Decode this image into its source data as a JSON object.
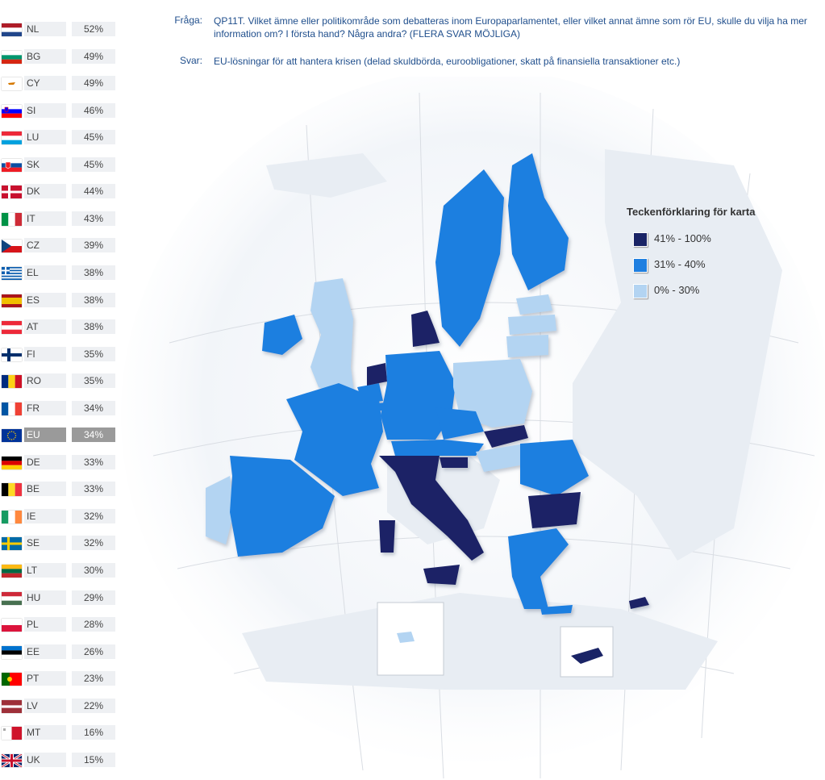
{
  "question": {
    "label": "Fråga:",
    "text": "QP11T. Vilket ämne eller politikområde som debatteras inom Europaparlamentet, eller vilket annat ämne som rör EU, skulle du vilja ha mer information om? I första hand? Några andra? (FLERA SVAR MÖJLIGA)"
  },
  "answer": {
    "label": "Svar:",
    "text": "EU-lösningar för att hantera krisen (delad skuldbörda, euroobligationer, skatt på finansiella transaktioner etc.)"
  },
  "legend": {
    "title": "Teckenförklaring för karta",
    "items": [
      {
        "label": "41% - 100%",
        "color": "#1a2466"
      },
      {
        "label": "31% - 40%",
        "color": "#1f7fe0"
      },
      {
        "label": "0% - 30%",
        "color": "#b3d4f2"
      }
    ]
  },
  "ranking": [
    {
      "code": "NL",
      "value": "52%",
      "flag": "nl"
    },
    {
      "code": "BG",
      "value": "49%",
      "flag": "bg"
    },
    {
      "code": "CY",
      "value": "49%",
      "flag": "cy"
    },
    {
      "code": "SI",
      "value": "46%",
      "flag": "si"
    },
    {
      "code": "LU",
      "value": "45%",
      "flag": "lu"
    },
    {
      "code": "SK",
      "value": "45%",
      "flag": "sk"
    },
    {
      "code": "DK",
      "value": "44%",
      "flag": "dk"
    },
    {
      "code": "IT",
      "value": "43%",
      "flag": "it"
    },
    {
      "code": "CZ",
      "value": "39%",
      "flag": "cz"
    },
    {
      "code": "EL",
      "value": "38%",
      "flag": "el"
    },
    {
      "code": "ES",
      "value": "38%",
      "flag": "es"
    },
    {
      "code": "AT",
      "value": "38%",
      "flag": "at"
    },
    {
      "code": "FI",
      "value": "35%",
      "flag": "fi"
    },
    {
      "code": "RO",
      "value": "35%",
      "flag": "ro"
    },
    {
      "code": "FR",
      "value": "34%",
      "flag": "fr"
    },
    {
      "code": "EU",
      "value": "34%",
      "flag": "eu"
    },
    {
      "code": "DE",
      "value": "33%",
      "flag": "de"
    },
    {
      "code": "BE",
      "value": "33%",
      "flag": "be"
    },
    {
      "code": "IE",
      "value": "32%",
      "flag": "ie"
    },
    {
      "code": "SE",
      "value": "32%",
      "flag": "se"
    },
    {
      "code": "LT",
      "value": "30%",
      "flag": "lt"
    },
    {
      "code": "HU",
      "value": "29%",
      "flag": "hu"
    },
    {
      "code": "PL",
      "value": "28%",
      "flag": "pl"
    },
    {
      "code": "EE",
      "value": "26%",
      "flag": "ee"
    },
    {
      "code": "PT",
      "value": "23%",
      "flag": "pt"
    },
    {
      "code": "LV",
      "value": "22%",
      "flag": "lv"
    },
    {
      "code": "MT",
      "value": "16%",
      "flag": "mt"
    },
    {
      "code": "UK",
      "value": "15%",
      "flag": "uk"
    }
  ]
}
